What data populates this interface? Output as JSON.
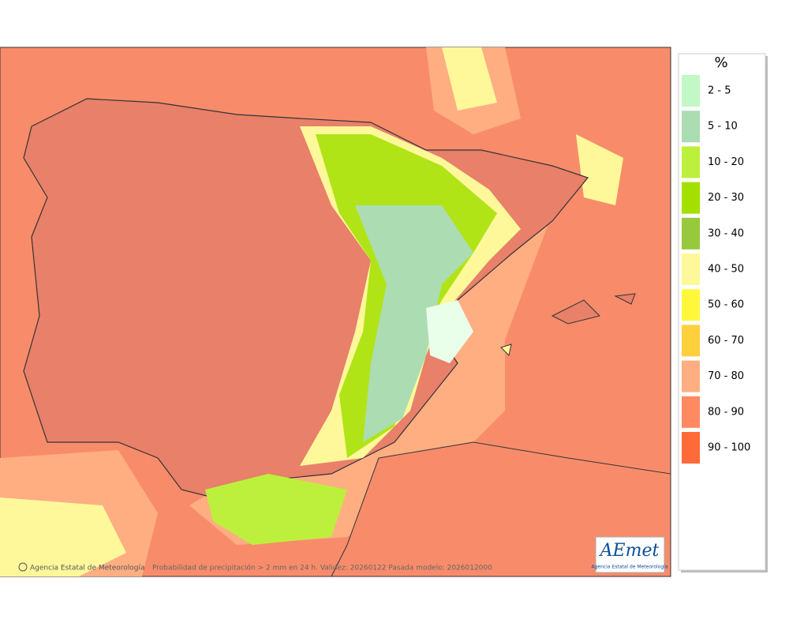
{
  "legend": {
    "title": "%",
    "items": [
      {
        "label": "2 - 5",
        "color": "#c2f7c6"
      },
      {
        "label": "5 - 10",
        "color": "#acdcb2"
      },
      {
        "label": "10 - 20",
        "color": "#bdf03c"
      },
      {
        "label": "20 - 30",
        "color": "#a3e000"
      },
      {
        "label": "30 - 40",
        "color": "#98c83c"
      },
      {
        "label": "40 - 50",
        "color": "#fff89a"
      },
      {
        "label": "50 - 60",
        "color": "#fff83a"
      },
      {
        "label": "60 - 70",
        "color": "#ffd03c"
      },
      {
        "label": "70 - 80",
        "color": "#ffae82"
      },
      {
        "label": "80 - 90",
        "color": "#ff8a62"
      },
      {
        "label": "90 - 100",
        "color": "#ff6a38"
      }
    ]
  },
  "footer": {
    "copyright": "Agencia Estatal de Meteorología",
    "caption": "Probabilidad de precipitación > 2 mm en 24 h. Validez: 20260122 Pasada modelo: 2026012000"
  },
  "logo": {
    "name": "AEmet",
    "subtitle": "Agencia Estatal de Meteorología"
  }
}
